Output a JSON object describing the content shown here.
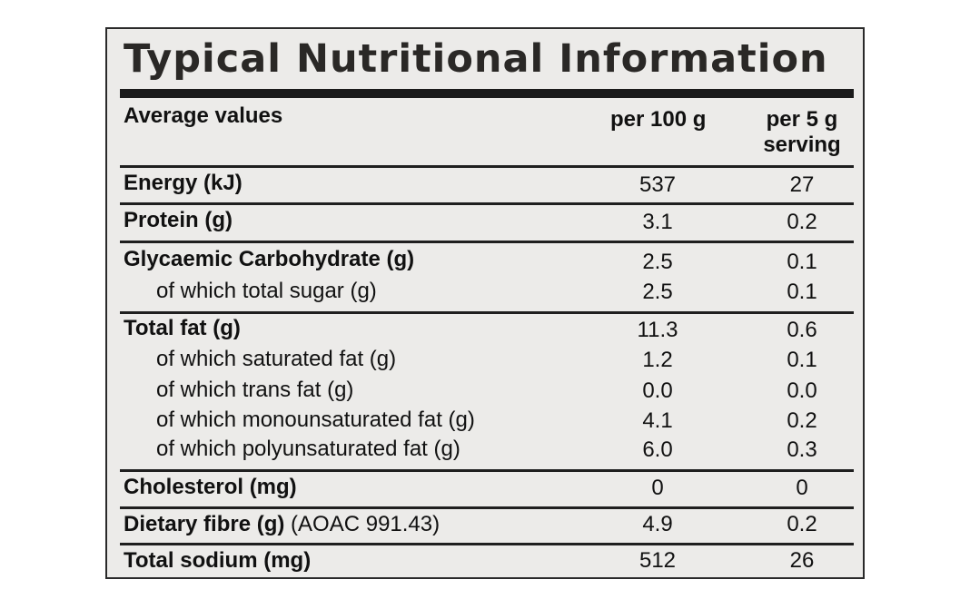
{
  "title": "Typical Nutritional Information",
  "header": {
    "col0": "Average values",
    "col1": "per 100 g",
    "col2_line1": "per 5 g",
    "col2_line2": "serving"
  },
  "rows": [
    {
      "label": "Energy (kJ)",
      "per100": "537",
      "per5": "27"
    },
    {
      "label": "Protein (g)",
      "per100": "3.1",
      "per5": "0.2"
    },
    {
      "label": "Glycaemic Carbohydrate (g)",
      "per100": "2.5",
      "per5": "0.1"
    },
    {
      "label": "of which total sugar (g)",
      "per100": "2.5",
      "per5": "0.1"
    },
    {
      "label": "Total fat (g)",
      "per100": "11.3",
      "per5": "0.6"
    },
    {
      "label": "of which saturated fat (g)",
      "per100": "1.2",
      "per5": "0.1"
    },
    {
      "label": "of which trans fat (g)",
      "per100": "0.0",
      "per5": "0.0"
    },
    {
      "label": "of which monounsaturated fat (g)",
      "per100": "4.1",
      "per5": "0.2"
    },
    {
      "label": "of which polyunsaturated fat (g)",
      "per100": "6.0",
      "per5": "0.3"
    },
    {
      "label": "Cholesterol (mg)",
      "per100": "0",
      "per5": "0"
    },
    {
      "label_bold": "Dietary fibre (g)",
      "label_rest": " (AOAC 991.43)",
      "per100": "4.9",
      "per5": "0.2"
    },
    {
      "label": "Total sodium (mg)",
      "per100": "512",
      "per5": "26"
    }
  ]
}
